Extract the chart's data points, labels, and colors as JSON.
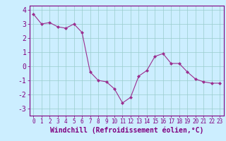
{
  "x": [
    0,
    1,
    2,
    3,
    4,
    5,
    6,
    7,
    8,
    9,
    10,
    11,
    12,
    13,
    14,
    15,
    16,
    17,
    18,
    19,
    20,
    21,
    22,
    23
  ],
  "y": [
    3.7,
    3.0,
    3.1,
    2.8,
    2.7,
    3.0,
    2.4,
    -0.4,
    -1.0,
    -1.1,
    -1.6,
    -2.6,
    -2.2,
    -0.7,
    -0.3,
    0.7,
    0.9,
    0.2,
    0.2,
    -0.4,
    -0.9,
    -1.1,
    -1.2,
    -1.2
  ],
  "line_color": "#9b2d8e",
  "marker": "D",
  "bg_color": "#cceeff",
  "grid_color": "#99cccc",
  "xlabel": "Windchill (Refroidissement éolien,°C)",
  "xlim": [
    -0.5,
    23.5
  ],
  "ylim": [
    -3.5,
    4.3
  ],
  "yticks": [
    -3,
    -2,
    -1,
    0,
    1,
    2,
    3,
    4
  ],
  "xticks": [
    0,
    1,
    2,
    3,
    4,
    5,
    6,
    7,
    8,
    9,
    10,
    11,
    12,
    13,
    14,
    15,
    16,
    17,
    18,
    19,
    20,
    21,
    22,
    23
  ],
  "xlabel_fontsize": 7,
  "tick_fontsize": 7,
  "xtick_fontsize": 5.5,
  "tick_color": "#800080",
  "spine_color": "#800080"
}
